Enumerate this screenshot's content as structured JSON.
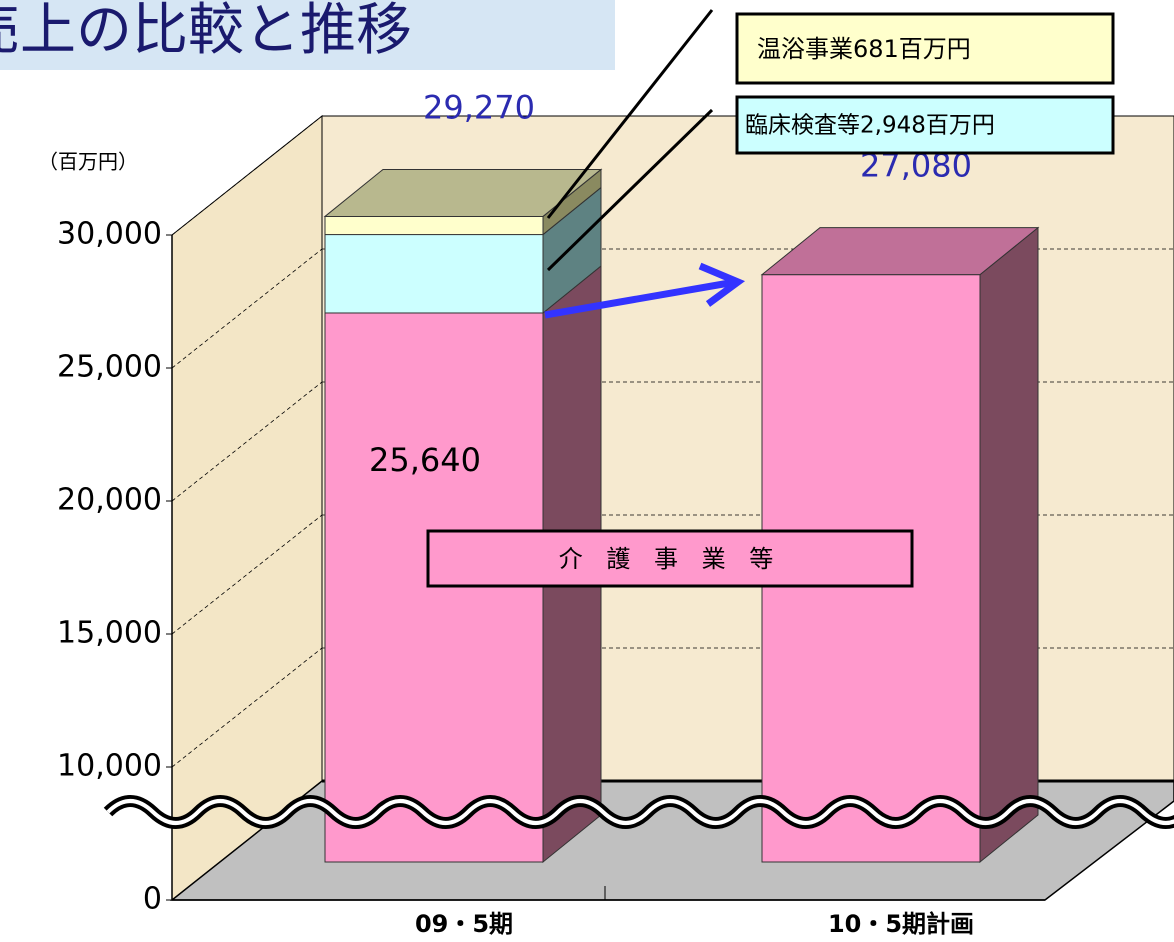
{
  "chart_data": {
    "type": "bar3d_stacked",
    "title": "売上の比較と推移",
    "ylabel": "（百万円）",
    "categories": [
      "09・5期",
      "10・5期計画"
    ],
    "series": [
      {
        "name": "介 護 事 業 等",
        "color": "#ff99cc",
        "values": [
          25640,
          27080
        ],
        "value_labels": [
          "25,640",
          null
        ]
      },
      {
        "name": "臨床検査等2,948百万円",
        "color": "#ccffff",
        "values": [
          2948,
          null
        ]
      },
      {
        "name": "温浴事業681百万円",
        "color": "#ffffcc",
        "values": [
          681,
          null
        ]
      }
    ],
    "totals": {
      "values": [
        29270,
        27080
      ],
      "value_labels": [
        "29,270",
        "27,080"
      ],
      "color": "#2b2bb0"
    },
    "ylim": [
      0,
      30000
    ],
    "yticks": [
      0,
      {
        "value": 10000,
        "label": "10,000"
      },
      {
        "value": 15000,
        "label": "15,000"
      },
      {
        "value": 20000,
        "label": "20,000"
      },
      {
        "value": 25000,
        "label": "25,000"
      },
      {
        "value": 30000,
        "label": "30,000"
      }
    ],
    "grid": true,
    "axis_break": true
  }
}
